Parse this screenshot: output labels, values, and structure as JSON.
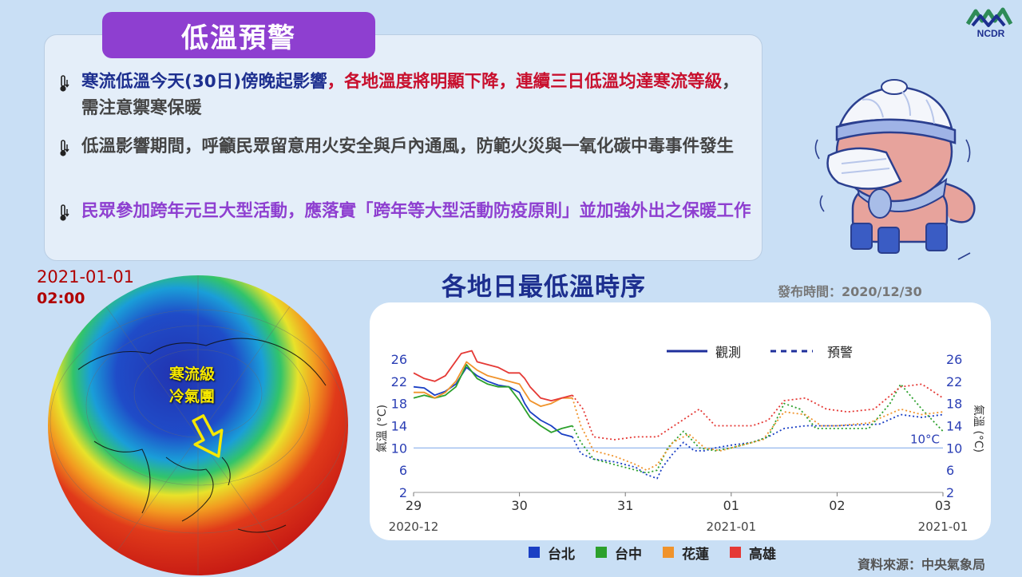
{
  "header": {
    "title": "低溫預警",
    "logo_text": "NCDR"
  },
  "notices": [
    {
      "icon": "thermometer-down-icon",
      "segments": [
        {
          "text": "寒流低溫今天(30日)傍晚起影響",
          "color": "blue"
        },
        {
          "text": "，各地溫度將明顯下降，連續三日低溫均達寒流等級",
          "color": "red"
        },
        {
          "text": "，需注意禦寒保暖",
          "color": "dark"
        }
      ]
    },
    {
      "icon": "thermometer-down-icon",
      "segments": [
        {
          "text": "低溫影響期間，呼籲民眾留意用火安全與戶內通風，防範火災與一氧化碳中毒事件發生",
          "color": "dark"
        }
      ]
    },
    {
      "icon": "thermometer-down-icon",
      "segments": [
        {
          "text": "民眾參加跨年元旦大型活動，應落實「跨年等大型活動防疫原則」並加強外出之保暖工作",
          "color": "purple"
        }
      ]
    }
  ],
  "map": {
    "date": "2021-01-01",
    "time": "02:00",
    "label_line1": "寒流級",
    "label_line2": "冷氣團"
  },
  "chart_header": {
    "issue_time": "發布時間：2020/12/30",
    "source": "資料來源：中央氣象局"
  },
  "chart_data": {
    "type": "line",
    "title": "各地日最低溫時序",
    "ylabel": "氣溫 (°C)",
    "ylim": [
      2,
      28
    ],
    "yticks": [
      2,
      6,
      10,
      14,
      18,
      22,
      26
    ],
    "xlim": [
      0,
      5
    ],
    "xticks": [
      0,
      1,
      2,
      3,
      4,
      5
    ],
    "xtick_labels": [
      "29",
      "30",
      "31",
      "01",
      "02",
      "03"
    ],
    "x_month_labels": [
      {
        "x": 0,
        "label": "2020-12"
      },
      {
        "x": 3,
        "label": "2021-01"
      },
      {
        "x": 5,
        "label": "2021-01"
      }
    ],
    "reference_line": {
      "y": 10,
      "label": "10°C"
    },
    "style_legend": [
      {
        "label": "觀測",
        "style": "solid"
      },
      {
        "label": "預警",
        "style": "dashed"
      }
    ],
    "series": [
      {
        "name": "台北",
        "color": "#1a3fc4",
        "observed": [
          [
            0,
            21
          ],
          [
            0.1,
            20.8
          ],
          [
            0.2,
            19.5
          ],
          [
            0.3,
            20.2
          ],
          [
            0.4,
            21.5
          ],
          [
            0.5,
            24.5
          ],
          [
            0.6,
            23
          ],
          [
            0.7,
            22
          ],
          [
            0.8,
            21.3
          ],
          [
            0.9,
            21
          ],
          [
            1.0,
            20
          ],
          [
            1.05,
            18
          ],
          [
            1.1,
            16.5
          ],
          [
            1.2,
            15
          ],
          [
            1.3,
            14
          ],
          [
            1.4,
            12.5
          ],
          [
            1.5,
            12
          ]
        ],
        "forecast": [
          [
            1.5,
            12
          ],
          [
            1.58,
            9
          ],
          [
            1.7,
            8
          ],
          [
            1.9,
            7.5
          ],
          [
            2.1,
            6.5
          ],
          [
            2.2,
            5.2
          ],
          [
            2.3,
            4.5
          ],
          [
            2.35,
            6.5
          ],
          [
            2.45,
            9
          ],
          [
            2.55,
            11
          ],
          [
            2.65,
            9.5
          ],
          [
            2.75,
            9.5
          ],
          [
            2.85,
            10
          ],
          [
            3.0,
            10.5
          ],
          [
            3.2,
            11
          ],
          [
            3.35,
            12
          ],
          [
            3.5,
            13.5
          ],
          [
            3.7,
            14
          ],
          [
            4.0,
            14
          ],
          [
            4.4,
            14.3
          ],
          [
            4.6,
            16
          ],
          [
            4.8,
            15.5
          ],
          [
            5.0,
            16
          ]
        ]
      },
      {
        "name": "台中",
        "color": "#2ca02c",
        "observed": [
          [
            0,
            19
          ],
          [
            0.1,
            19.5
          ],
          [
            0.2,
            19
          ],
          [
            0.3,
            19.5
          ],
          [
            0.4,
            21
          ],
          [
            0.5,
            25
          ],
          [
            0.6,
            22.5
          ],
          [
            0.7,
            21.5
          ],
          [
            0.8,
            21
          ],
          [
            0.9,
            21
          ],
          [
            1.0,
            18.5
          ],
          [
            1.05,
            17
          ],
          [
            1.1,
            15.5
          ],
          [
            1.2,
            14
          ],
          [
            1.3,
            12.8
          ],
          [
            1.4,
            13.5
          ],
          [
            1.5,
            14
          ]
        ],
        "forecast": [
          [
            1.5,
            14
          ],
          [
            1.58,
            11
          ],
          [
            1.7,
            8
          ],
          [
            1.9,
            7
          ],
          [
            2.1,
            6
          ],
          [
            2.2,
            5.5
          ],
          [
            2.3,
            6
          ],
          [
            2.4,
            10
          ],
          [
            2.55,
            13
          ],
          [
            2.7,
            10
          ],
          [
            2.85,
            9.5
          ],
          [
            3.0,
            10
          ],
          [
            3.2,
            11
          ],
          [
            3.35,
            12
          ],
          [
            3.5,
            18
          ],
          [
            3.65,
            17
          ],
          [
            3.8,
            13.5
          ],
          [
            4.0,
            13.5
          ],
          [
            4.3,
            13.5
          ],
          [
            4.5,
            18
          ],
          [
            4.6,
            21.5
          ],
          [
            4.8,
            17
          ],
          [
            5.0,
            13
          ]
        ]
      },
      {
        "name": "花蓮",
        "color": "#f0932b",
        "observed": [
          [
            0,
            20
          ],
          [
            0.1,
            20
          ],
          [
            0.2,
            19
          ],
          [
            0.3,
            20
          ],
          [
            0.4,
            22
          ],
          [
            0.5,
            25.5
          ],
          [
            0.6,
            24
          ],
          [
            0.7,
            23
          ],
          [
            0.8,
            22.5
          ],
          [
            0.9,
            22
          ],
          [
            1.0,
            21.5
          ],
          [
            1.05,
            20
          ],
          [
            1.1,
            18.5
          ],
          [
            1.2,
            17.5
          ],
          [
            1.3,
            18
          ],
          [
            1.4,
            19
          ],
          [
            1.5,
            19
          ]
        ],
        "forecast": [
          [
            1.5,
            19
          ],
          [
            1.58,
            14
          ],
          [
            1.7,
            9.5
          ],
          [
            1.9,
            8.5
          ],
          [
            2.1,
            7
          ],
          [
            2.2,
            6
          ],
          [
            2.3,
            7
          ],
          [
            2.45,
            11
          ],
          [
            2.6,
            12.5
          ],
          [
            2.75,
            10
          ],
          [
            2.9,
            9.5
          ],
          [
            3.1,
            10.5
          ],
          [
            3.3,
            11.5
          ],
          [
            3.5,
            16.5
          ],
          [
            3.7,
            16
          ],
          [
            3.85,
            14
          ],
          [
            4.0,
            14
          ],
          [
            4.3,
            14.5
          ],
          [
            4.6,
            17
          ],
          [
            4.8,
            16
          ],
          [
            5.0,
            16.5
          ]
        ]
      },
      {
        "name": "高雄",
        "color": "#e53935",
        "observed": [
          [
            0,
            23.5
          ],
          [
            0.1,
            22.5
          ],
          [
            0.2,
            22
          ],
          [
            0.3,
            23
          ],
          [
            0.45,
            27
          ],
          [
            0.55,
            27.5
          ],
          [
            0.6,
            25.5
          ],
          [
            0.7,
            25
          ],
          [
            0.8,
            24.5
          ],
          [
            0.9,
            23.5
          ],
          [
            1.0,
            23.5
          ],
          [
            1.05,
            22.5
          ],
          [
            1.1,
            21
          ],
          [
            1.2,
            19
          ],
          [
            1.3,
            18.5
          ],
          [
            1.4,
            19
          ],
          [
            1.5,
            19.5
          ]
        ],
        "forecast": [
          [
            1.5,
            19.5
          ],
          [
            1.6,
            17
          ],
          [
            1.7,
            12
          ],
          [
            1.9,
            11.5
          ],
          [
            2.1,
            12
          ],
          [
            2.3,
            12
          ],
          [
            2.5,
            14.5
          ],
          [
            2.7,
            17
          ],
          [
            2.85,
            14
          ],
          [
            3.0,
            14
          ],
          [
            3.2,
            14
          ],
          [
            3.35,
            15
          ],
          [
            3.5,
            18.5
          ],
          [
            3.7,
            19
          ],
          [
            3.9,
            17
          ],
          [
            4.1,
            16.5
          ],
          [
            4.35,
            17
          ],
          [
            4.6,
            21
          ],
          [
            4.8,
            21.5
          ],
          [
            5.0,
            19
          ]
        ]
      }
    ]
  }
}
